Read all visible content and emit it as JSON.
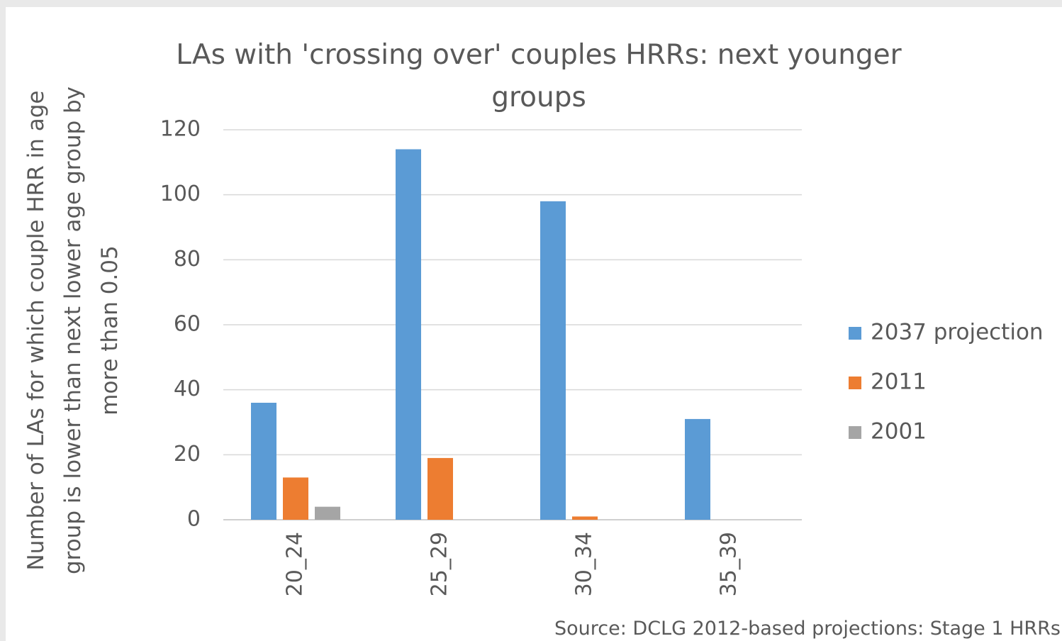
{
  "chart_data": {
    "type": "bar",
    "title": "LAs with 'crossing over' couples HRRs: next younger groups",
    "y_label": "Number of LAs for which couple HRR in age group is lower than next lower age group by more than 0.05",
    "source": "Source: DCLG 2012-based projections: Stage 1 HRRs",
    "categories": [
      "20_24",
      "25_29",
      "30_34",
      "35_39"
    ],
    "series": [
      {
        "name": "2037 projection",
        "color": "#5b9bd5",
        "values": [
          36,
          114,
          98,
          31
        ]
      },
      {
        "name": "2011",
        "color": "#ed7d31",
        "values": [
          13,
          19,
          1,
          0
        ]
      },
      {
        "name": "2001",
        "color": "#a5a5a5",
        "values": [
          4,
          0,
          0,
          0
        ]
      }
    ],
    "ylim": [
      0,
      120
    ],
    "yticks": [
      0,
      20,
      40,
      60,
      80,
      100,
      120
    ],
    "grid": true,
    "legend": "right"
  }
}
